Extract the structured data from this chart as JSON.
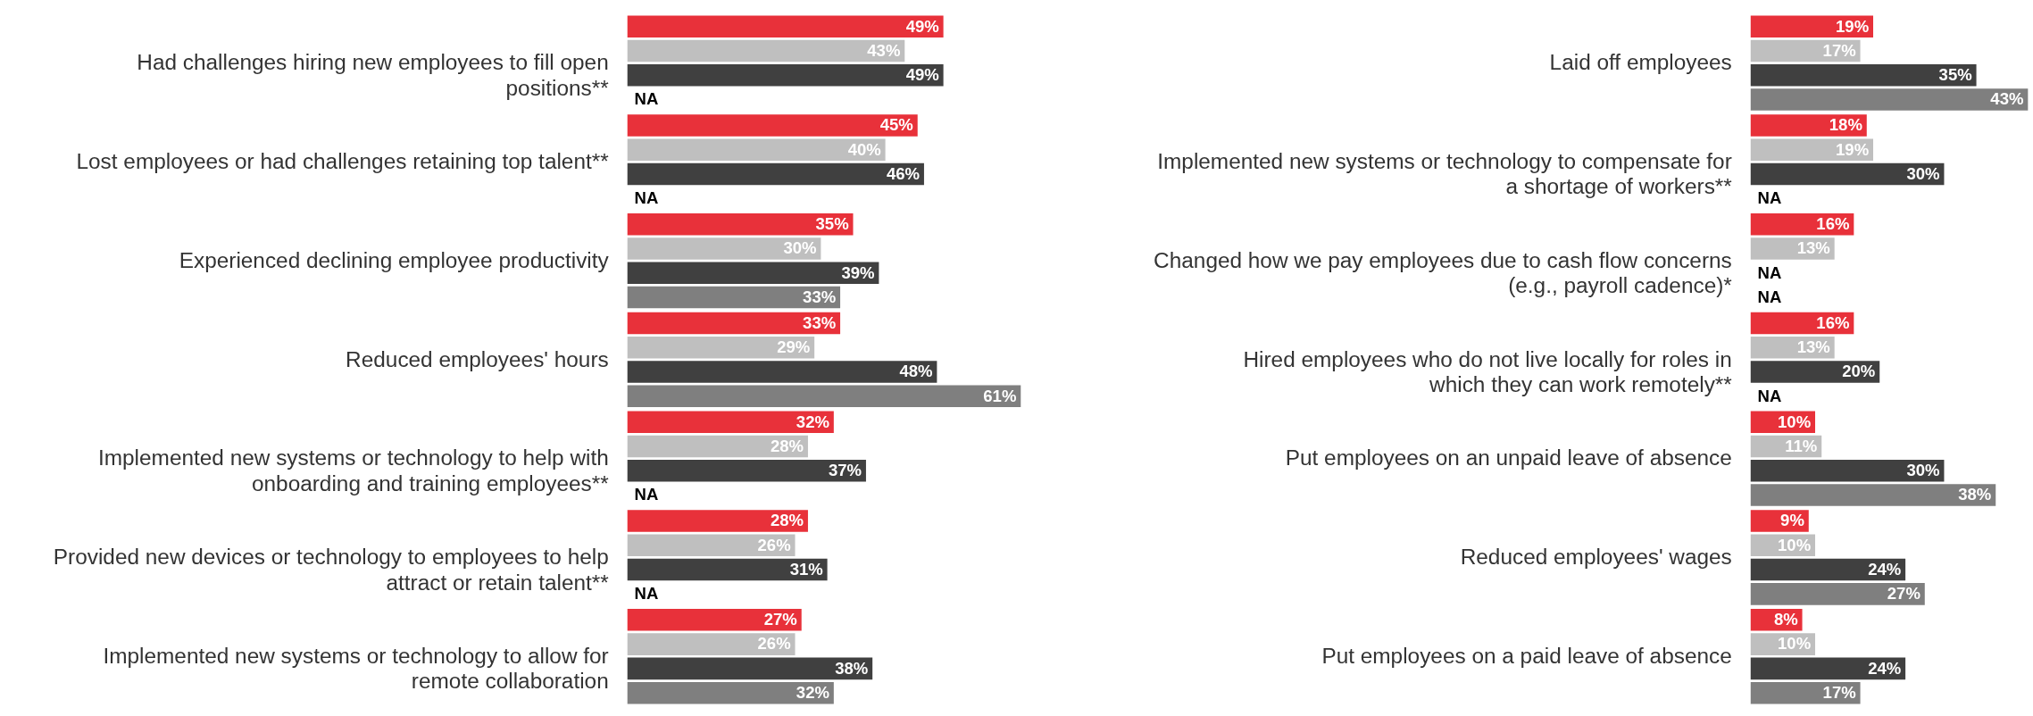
{
  "chart_data": [
    {
      "type": "bar",
      "orientation": "horizontal",
      "tick_labels": "y",
      "grid": false,
      "legend": false,
      "categories": [
        "Had challenges hiring new employees to fill open positions**",
        "Lost employees or had challenges retaining top talent**",
        "Experienced declining employee productivity",
        "Reduced employees' hours",
        "Implemented new systems or technology to help with onboarding and training employees**",
        "Provided new devices or technology to employees to help attract or retain talent**",
        "Implemented new systems or technology to allow for remote collaboration"
      ],
      "series": [
        {
          "color": "#e8313a",
          "values": [
            49,
            45,
            35,
            33,
            32,
            28,
            27
          ],
          "value_labels": [
            "49%",
            "45%",
            "35%",
            "33%",
            "32%",
            "28%",
            "27%"
          ]
        },
        {
          "color": "#bfbfbf",
          "values": [
            43,
            40,
            30,
            29,
            28,
            26,
            26
          ],
          "value_labels": [
            "43%",
            "40%",
            "30%",
            "29%",
            "28%",
            "26%",
            "26%"
          ]
        },
        {
          "color": "#404040",
          "values": [
            49,
            46,
            39,
            48,
            37,
            31,
            38
          ],
          "value_labels": [
            "49%",
            "46%",
            "39%",
            "48%",
            "37%",
            "31%",
            "38%"
          ]
        },
        {
          "color": "#7f7f7f",
          "values": [
            null,
            null,
            33,
            61,
            null,
            null,
            32
          ],
          "value_labels": [
            "NA",
            "NA",
            "33%",
            "61%",
            "NA",
            "NA",
            "32%"
          ]
        }
      ]
    },
    {
      "type": "bar",
      "orientation": "horizontal",
      "tick_labels": "y",
      "grid": false,
      "legend": false,
      "categories": [
        "Laid off employees",
        "Implemented new systems or technology to compensate for a shortage of workers**",
        "Changed how we pay employees due to cash flow concerns (e.g., payroll cadence)*",
        "Hired employees who do not live locally for roles in which they can work remotely**",
        "Put employees on an unpaid leave of absence",
        "Reduced employees' wages",
        "Put employees on a paid leave of absence"
      ],
      "series": [
        {
          "color": "#e8313a",
          "values": [
            19,
            18,
            16,
            16,
            10,
            9,
            8
          ],
          "value_labels": [
            "19%",
            "18%",
            "16%",
            "16%",
            "10%",
            "9%",
            "8%"
          ]
        },
        {
          "color": "#bfbfbf",
          "values": [
            17,
            19,
            13,
            13,
            11,
            10,
            10
          ],
          "value_labels": [
            "17%",
            "19%",
            "13%",
            "13%",
            "11%",
            "10%",
            "10%"
          ]
        },
        {
          "color": "#404040",
          "values": [
            35,
            30,
            null,
            20,
            30,
            24,
            24
          ],
          "value_labels": [
            "35%",
            "30%",
            "NA",
            "20%",
            "30%",
            "24%",
            "24%"
          ]
        },
        {
          "color": "#7f7f7f",
          "values": [
            43,
            null,
            null,
            null,
            38,
            27,
            17
          ],
          "value_labels": [
            "43%",
            "NA",
            "NA",
            "NA",
            "38%",
            "27%",
            "17%"
          ]
        }
      ]
    }
  ]
}
